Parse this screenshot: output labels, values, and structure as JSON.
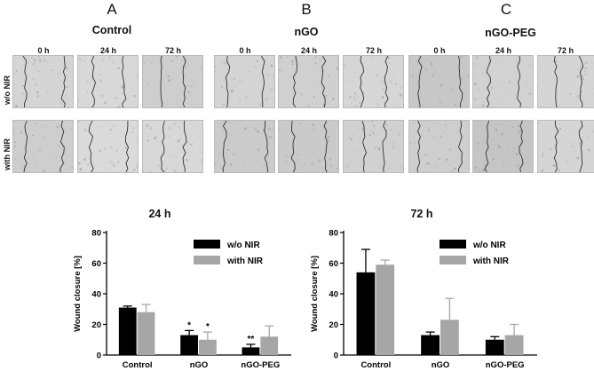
{
  "figure": {
    "panel_letters": [
      "A",
      "B",
      "C"
    ],
    "groups": [
      "Control",
      "nGO",
      "nGO-PEG"
    ],
    "time_labels": [
      "0 h",
      "24 h",
      "72 h"
    ],
    "row_labels": [
      "w/o NIR",
      "with NIR"
    ]
  },
  "colors": {
    "without_nir": "#000000",
    "with_nir": "#a6a6a6",
    "micrograph_bg": "#d2d2d2"
  },
  "chart_data": [
    {
      "type": "bar",
      "title": "24 h",
      "ylabel": "Wound closure [%]",
      "xlabel": "",
      "ylim": [
        0,
        80
      ],
      "yticks": [
        0,
        20,
        40,
        60,
        80
      ],
      "categories": [
        "Control",
        "nGO",
        "nGO-PEG"
      ],
      "series": [
        {
          "name": "w/o NIR",
          "values": [
            31,
            13,
            5
          ],
          "errors": [
            1,
            3,
            2
          ]
        },
        {
          "name": "with NIR",
          "values": [
            28,
            10,
            12
          ],
          "errors": [
            5,
            5,
            7
          ]
        }
      ],
      "annotations": [
        {
          "category": "nGO",
          "series": "w/o NIR",
          "text": "*"
        },
        {
          "category": "nGO",
          "series": "with NIR",
          "text": "*"
        },
        {
          "category": "nGO-PEG",
          "series": "w/o NIR",
          "text": "**"
        }
      ],
      "legend": "top-right",
      "grid": false
    },
    {
      "type": "bar",
      "title": "72 h",
      "ylabel": "Wound closure [%]",
      "xlabel": "",
      "ylim": [
        0,
        80
      ],
      "yticks": [
        0,
        20,
        40,
        60,
        80
      ],
      "categories": [
        "Control",
        "nGO",
        "nGO-PEG"
      ],
      "series": [
        {
          "name": "w/o NIR",
          "values": [
            54,
            13,
            10
          ],
          "errors": [
            15,
            2,
            2
          ]
        },
        {
          "name": "with NIR",
          "values": [
            59,
            23,
            13
          ],
          "errors": [
            3,
            14,
            7
          ]
        }
      ],
      "annotations": [],
      "legend": "top-right",
      "grid": false
    }
  ]
}
